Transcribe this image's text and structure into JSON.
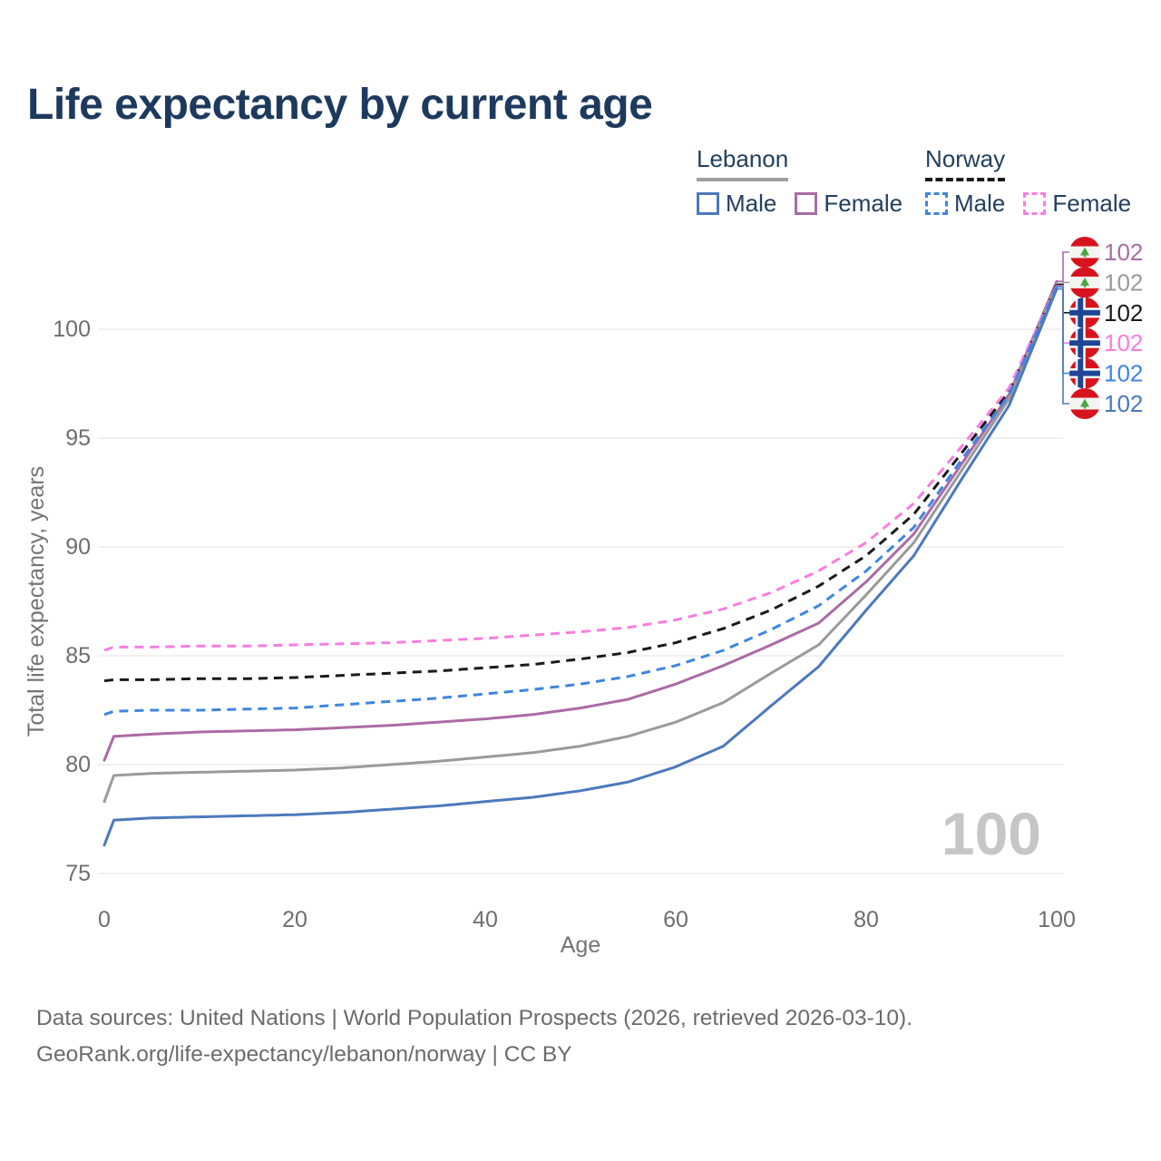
{
  "title": "Life expectancy by current age",
  "legend": {
    "lebanon": {
      "label": "Lebanon",
      "male_label": "Male",
      "female_label": "Female",
      "male_color": "#4c79bd",
      "female_color": "#ab6ba6",
      "underline_color": "#9e9e9e",
      "line_style": "solid"
    },
    "norway": {
      "label": "Norway",
      "male_label": "Male",
      "female_label": "Female",
      "male_color": "#3e86e0",
      "female_color": "#fb7ce0",
      "underline_color": "#1a1a1a",
      "line_style": "dashed"
    }
  },
  "chart_data": {
    "type": "line",
    "title": "Life expectancy by current age",
    "xlabel": "Age",
    "ylabel": "Total life expectancy, years",
    "xlim": [
      0,
      100
    ],
    "ylim": [
      75,
      102.6
    ],
    "xticks": [
      0,
      20,
      40,
      60,
      80,
      100
    ],
    "yticks": [
      75,
      80,
      85,
      90,
      95,
      100
    ],
    "grid": "horizontal",
    "gridline_color": "#ebebeb",
    "tick_color": "#6e6e6e",
    "legend_position": "top-right",
    "watermark_age": "100",
    "watermark_color": "#c6c6c6",
    "x": [
      0,
      1,
      5,
      10,
      15,
      20,
      25,
      30,
      35,
      40,
      45,
      50,
      55,
      60,
      65,
      70,
      75,
      80,
      85,
      90,
      95,
      100
    ],
    "series": [
      {
        "name": "Lebanon Female",
        "country": "Lebanon",
        "sex": "Female",
        "color": "#ab6ba6",
        "dash": "solid",
        "flag": "lebanon",
        "end_label": "102",
        "label_slot": 0,
        "values": [
          80.2,
          81.3,
          81.4,
          81.5,
          81.55,
          81.6,
          81.7,
          81.8,
          81.95,
          82.1,
          82.3,
          82.6,
          83.0,
          83.7,
          84.55,
          85.5,
          86.5,
          88.4,
          90.6,
          93.8,
          97.0,
          102.2
        ]
      },
      {
        "name": "Lebanon (both sexes)",
        "country": "Lebanon",
        "sex": "Both",
        "color": "#9a9a9a",
        "dash": "solid",
        "flag": "lebanon",
        "end_label": "102",
        "label_slot": 1,
        "values": [
          78.3,
          79.5,
          79.6,
          79.65,
          79.7,
          79.75,
          79.85,
          80.0,
          80.15,
          80.35,
          80.55,
          80.85,
          81.3,
          81.95,
          82.85,
          84.2,
          85.5,
          87.8,
          90.2,
          93.5,
          96.8,
          102.1
        ]
      },
      {
        "name": "Norway (both sexes)",
        "country": "Norway",
        "sex": "Both",
        "color": "#1a1a1a",
        "dash": "dashed",
        "flag": "norway",
        "end_label": "102",
        "label_slot": 2,
        "values": [
          83.85,
          83.9,
          83.9,
          83.95,
          83.95,
          84.0,
          84.1,
          84.2,
          84.3,
          84.45,
          84.6,
          84.85,
          85.15,
          85.6,
          86.25,
          87.1,
          88.2,
          89.6,
          91.5,
          94.3,
          97.15,
          102.05
        ]
      },
      {
        "name": "Norway Female",
        "country": "Norway",
        "sex": "Female",
        "color": "#fb7ce0",
        "dash": "dashed",
        "flag": "norway",
        "end_label": "102",
        "label_slot": 3,
        "values": [
          85.25,
          85.4,
          85.4,
          85.45,
          85.45,
          85.5,
          85.55,
          85.6,
          85.7,
          85.8,
          85.95,
          86.1,
          86.3,
          86.65,
          87.15,
          87.9,
          88.9,
          90.2,
          92.0,
          94.6,
          97.3,
          102.0
        ]
      },
      {
        "name": "Norway Male",
        "country": "Norway",
        "sex": "Male",
        "color": "#3e86e0",
        "dash": "dashed",
        "flag": "norway",
        "end_label": "102",
        "label_slot": 4,
        "values": [
          82.3,
          82.45,
          82.5,
          82.5,
          82.55,
          82.6,
          82.75,
          82.9,
          83.05,
          83.25,
          83.45,
          83.7,
          84.05,
          84.55,
          85.25,
          86.2,
          87.3,
          88.9,
          90.9,
          94.0,
          97.0,
          101.95
        ]
      },
      {
        "name": "Lebanon Male",
        "country": "Lebanon",
        "sex": "Male",
        "color": "#4c79bd",
        "dash": "solid",
        "flag": "lebanon",
        "end_label": "102",
        "label_slot": 5,
        "values": [
          76.3,
          77.45,
          77.55,
          77.6,
          77.65,
          77.7,
          77.8,
          77.95,
          78.1,
          78.3,
          78.5,
          78.8,
          79.2,
          79.9,
          80.85,
          82.7,
          84.5,
          87.1,
          89.6,
          93.1,
          96.5,
          101.85
        ]
      }
    ],
    "flag_colors": {
      "lebanon_red": "#d7141d",
      "lebanon_white": "#f4f5f0",
      "lebanon_green": "#4aa546",
      "norway_red": "#d7141d",
      "norway_blue": "#1f4696",
      "norway_white": "#ffffff"
    }
  },
  "footer": {
    "line1": "Data sources: United Nations | World Population Prospects (2026, retrieved 2026-03-10).",
    "line2": "GeoRank.org/life-expectancy/lebanon/norway | CC BY"
  }
}
